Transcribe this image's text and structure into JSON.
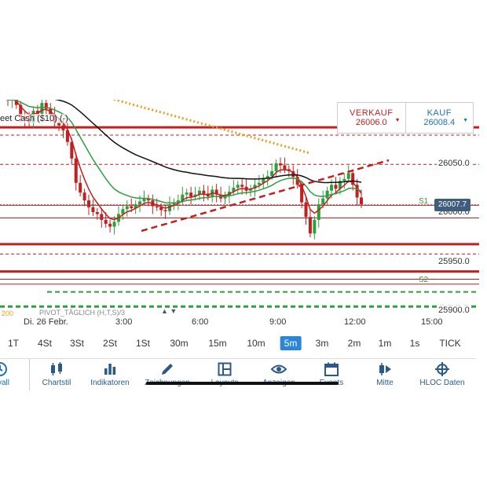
{
  "title": "eet Cash ($10) (-)",
  "quote": {
    "sell_label": "VERKAUF",
    "sell_value": "26006.0",
    "buy_label": "KAUF",
    "buy_value": "26008.4",
    "sell_arrow": "▼",
    "buy_arrow": "▼"
  },
  "price_axis": {
    "labels": [
      "26050.0",
      "26000.0",
      "25950.0",
      "25900.0"
    ],
    "current": "26007.7"
  },
  "pivot_labels": {
    "s1": "S1",
    "s2": "S2"
  },
  "indicator_bar": {
    "period": "200",
    "pivot": "PIVOT_TÄGLICH (H,T,S)/3",
    "arrows": "▲ ▼"
  },
  "time_axis": [
    "Di. 26 Febr.",
    "3:00",
    "6:00",
    "9:00",
    "12:00",
    "15:00"
  ],
  "intervals": {
    "items": [
      "1T",
      "4St",
      "3St",
      "2St",
      "1St",
      "30m",
      "15m",
      "10m",
      "5m",
      "3m",
      "2m",
      "1m",
      "1s",
      "TICK"
    ],
    "active": "5m"
  },
  "toolbar": {
    "items": [
      {
        "label": "ervall",
        "icon": "clock-icon"
      },
      {
        "label": "Chartstil",
        "icon": "candlestick-icon"
      },
      {
        "label": "Indikatoren",
        "icon": "bar-chart-icon"
      },
      {
        "label": "Zeichnungen",
        "icon": "pencil-icon"
      },
      {
        "label": "Layouts",
        "icon": "layout-icon"
      },
      {
        "label": "Anzeigen",
        "icon": "eye-icon"
      },
      {
        "label": "Events",
        "icon": "calendar-icon"
      },
      {
        "label": "Mitte",
        "icon": "center-icon"
      },
      {
        "label": "HLOC Daten",
        "icon": "crosshair-icon"
      }
    ]
  },
  "colors": {
    "sell": "#c31f1f",
    "buy": "#1f6fb3",
    "bull_candle": "#2e9e3f",
    "bear_candle": "#c31f1f",
    "ma_fast": "#c31f1f",
    "ma_mid": "#2e9e3f",
    "ma_slow": "#111111",
    "ma_200": "#e3a020",
    "active_interval": "#2a86d6"
  },
  "chart_data": {
    "type": "candlestick",
    "y_ticks": [
      26050,
      26000,
      25950,
      25900
    ],
    "x_ticks": [
      "Di. 26 Febr.",
      "3:00",
      "6:00",
      "9:00",
      "12:00",
      "15:00"
    ],
    "current_price": 26007.7,
    "closes": [
      26115,
      26118,
      26110,
      26098,
      26095,
      26092,
      26104,
      26101,
      26112,
      26106,
      26100,
      26092,
      26089,
      26084,
      26072,
      26055,
      26030,
      26020,
      26012,
      26005,
      26000,
      25998,
      25992,
      25988,
      25985,
      25990,
      25998,
      26003,
      26006,
      26004,
      26008,
      26011,
      26014,
      26012,
      26006,
      26005,
      26002,
      26001,
      26008,
      26010,
      26012,
      26018,
      26020,
      26016,
      26018,
      26022,
      26019,
      26016,
      26023,
      26018,
      26014,
      26017,
      26021,
      26025,
      26028,
      26026,
      26022,
      26024,
      26028,
      26030,
      26035,
      26037,
      26042,
      26050,
      26048,
      26044,
      26042,
      26036,
      26028,
      26010,
      25995,
      25978,
      25992,
      26008,
      26014,
      26022,
      26028,
      26024,
      26032,
      26034,
      26040,
      26028,
      26015,
      26008
    ],
    "levels": [
      26087,
      26079,
      26049,
      26007,
      25994,
      25967,
      25957,
      25939,
      25931,
      25926,
      25918,
      25903
    ]
  }
}
